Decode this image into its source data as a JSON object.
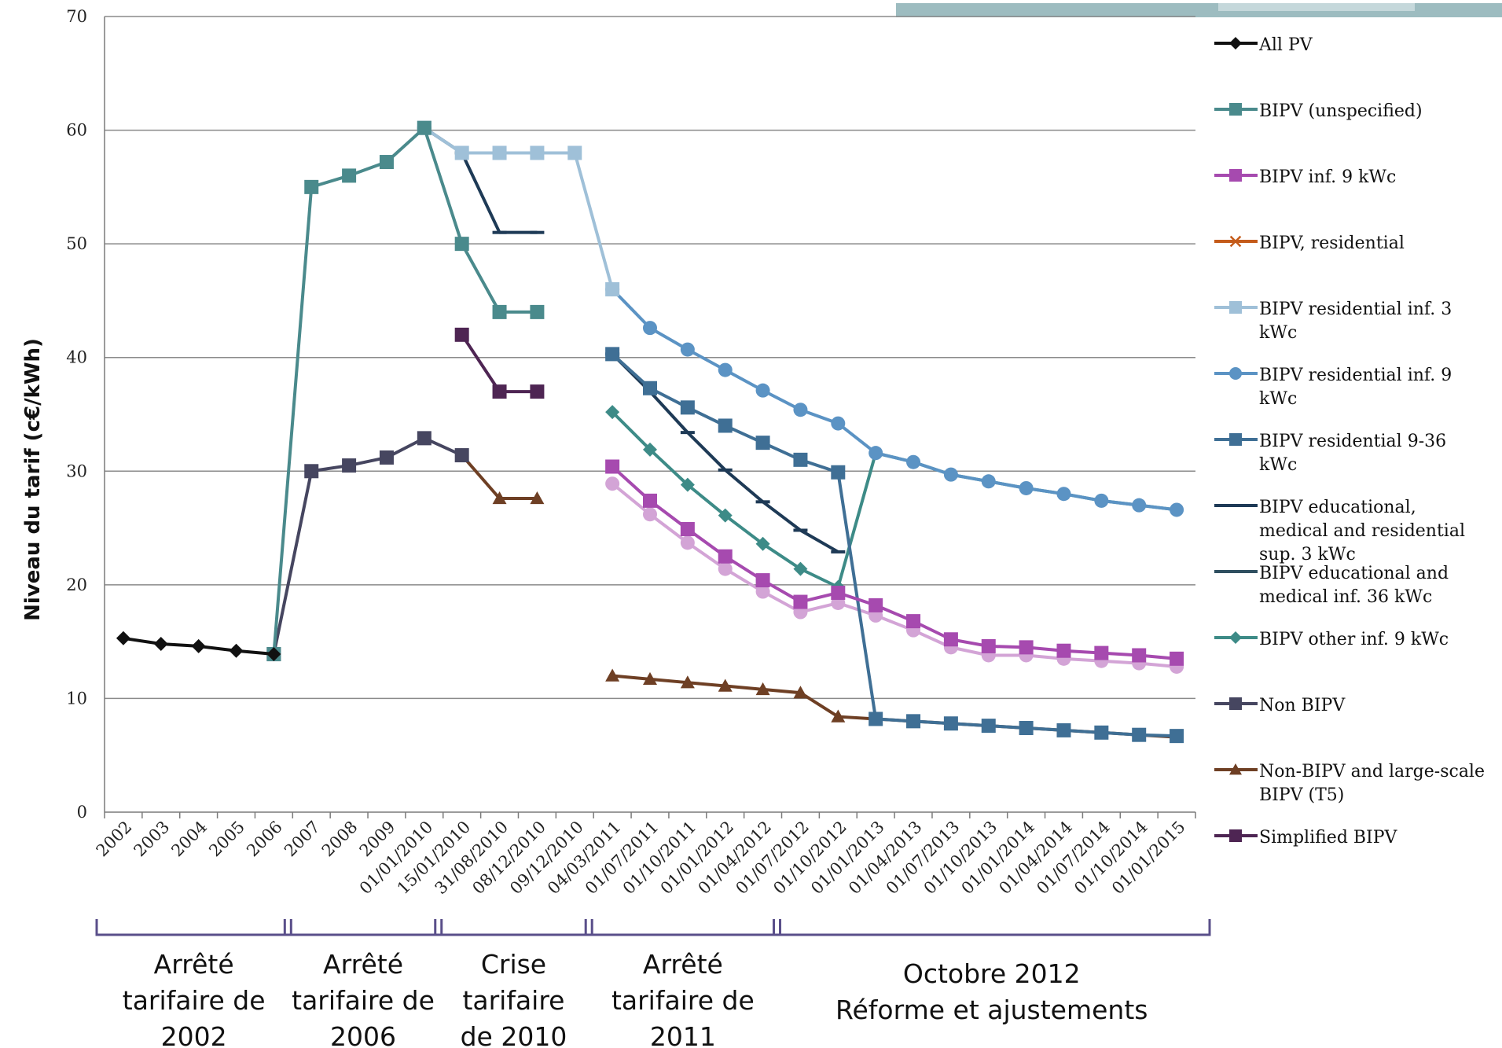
{
  "chart_data": {
    "type": "line",
    "ylabel": "Niveau du tarif (c€/kWh)",
    "xlabel": "",
    "ylim": [
      0,
      70
    ],
    "yticks": [
      0,
      10,
      20,
      30,
      40,
      50,
      60,
      70
    ],
    "grid": true,
    "legend_position": "right",
    "categories": [
      "2002",
      "2003",
      "2004",
      "2005",
      "2006",
      "2007",
      "2008",
      "2009",
      "01/01/2010",
      "15/01/2010",
      "31/08/2010",
      "08/12/2010",
      "09/12/2010",
      "04/03/2011",
      "01/07/2011",
      "01/10/2011",
      "01/01/2012",
      "01/04/2012",
      "01/07/2012",
      "01/10/2012",
      "01/01/2013",
      "01/04/2013",
      "01/07/2013",
      "01/10/2013",
      "01/01/2014",
      "01/04/2014",
      "01/07/2014",
      "01/10/2014",
      "01/01/2015"
    ],
    "series": [
      {
        "name": "All PV",
        "color": "#111111",
        "marker": "diamond",
        "values": [
          15.3,
          14.8,
          14.6,
          14.2,
          13.9,
          null,
          null,
          null,
          null,
          null,
          null,
          null,
          null,
          null,
          null,
          null,
          null,
          null,
          null,
          null,
          null,
          null,
          null,
          null,
          null,
          null,
          null,
          null,
          null
        ]
      },
      {
        "name": "BIPV (unspecified)",
        "color": "#4a8a8c",
        "marker": "square",
        "values": [
          null,
          null,
          null,
          null,
          13.9,
          55,
          56,
          57.2,
          60.2,
          50,
          44,
          44,
          null,
          null,
          null,
          null,
          null,
          null,
          null,
          null,
          null,
          null,
          null,
          null,
          null,
          null,
          null,
          null,
          null
        ]
      },
      {
        "name": "BIPV inf. 9 kWc",
        "color": "#a64aaf",
        "marker": "square",
        "values": [
          null,
          null,
          null,
          null,
          null,
          null,
          null,
          null,
          null,
          null,
          null,
          null,
          null,
          30.4,
          27.4,
          24.9,
          22.5,
          20.4,
          18.5,
          19.3,
          18.2,
          16.8,
          15.2,
          14.6,
          14.5,
          14.2,
          14.0,
          13.8,
          13.5
        ]
      },
      {
        "name": "BIPV, residential",
        "color": "#c45b1a",
        "marker": "x",
        "values": [
          null,
          null,
          null,
          null,
          null,
          null,
          null,
          null,
          null,
          null,
          null,
          null,
          null,
          null,
          null,
          null,
          null,
          null,
          null,
          null,
          null,
          null,
          null,
          null,
          null,
          null,
          null,
          null,
          null
        ]
      },
      {
        "name": "BIPV residential inf. 3 kWc",
        "color": "#9fc0d8",
        "marker": "square",
        "values": [
          null,
          null,
          null,
          null,
          null,
          null,
          null,
          null,
          60.2,
          58,
          58,
          58,
          58,
          46,
          null,
          null,
          null,
          null,
          null,
          null,
          null,
          null,
          null,
          null,
          null,
          null,
          null,
          null,
          null
        ]
      },
      {
        "name": "BIPV residential inf. 9 kWc",
        "color": "#5b93c4",
        "marker": "circle",
        "values": [
          null,
          null,
          null,
          null,
          null,
          null,
          null,
          null,
          null,
          null,
          null,
          null,
          null,
          46,
          42.6,
          40.7,
          38.9,
          37.1,
          35.4,
          34.2,
          31.6,
          30.8,
          29.7,
          29.1,
          28.5,
          28.0,
          27.4,
          27.0,
          26.6
        ]
      },
      {
        "name": "BIPV residential 9-36 kWc",
        "color": "#3f6f95",
        "marker": "square",
        "values": [
          null,
          null,
          null,
          null,
          null,
          null,
          null,
          null,
          null,
          null,
          null,
          null,
          null,
          40.3,
          37.3,
          35.6,
          34.0,
          32.5,
          31.0,
          29.9,
          8.2,
          8.0,
          7.8,
          7.6,
          7.4,
          7.2,
          7.0,
          6.8,
          6.7
        ]
      },
      {
        "name": "BIPV educational, medical and residential sup. 3 kWc",
        "color": "#1e3a56",
        "marker": "dash",
        "values": [
          null,
          null,
          null,
          null,
          null,
          null,
          null,
          null,
          60.2,
          58,
          51,
          51,
          null,
          40.3,
          37.0,
          33.4,
          30.1,
          27.3,
          24.8,
          22.9,
          null,
          null,
          null,
          null,
          null,
          null,
          null,
          null,
          null
        ]
      },
      {
        "name": "BIPV educational and medical inf. 36 kWc",
        "color": "#2f4f60",
        "marker": "none",
        "values": [
          null,
          null,
          null,
          null,
          null,
          null,
          null,
          null,
          null,
          null,
          null,
          null,
          null,
          null,
          null,
          null,
          null,
          null,
          null,
          null,
          null,
          null,
          null,
          null,
          null,
          null,
          null,
          null,
          null
        ]
      },
      {
        "name": "BIPV other inf. 9 kWc",
        "color": "#3d8b87",
        "marker": "diamond",
        "values": [
          null,
          null,
          null,
          null,
          null,
          null,
          null,
          null,
          null,
          null,
          null,
          null,
          null,
          35.2,
          31.9,
          28.8,
          26.1,
          23.6,
          21.4,
          19.8,
          31.6,
          30.8,
          29.7,
          29.1,
          28.5,
          28.0,
          27.4,
          27.0,
          26.6
        ]
      },
      {
        "name": "Non BIPV",
        "color": "#464660",
        "marker": "square",
        "values": [
          null,
          null,
          null,
          null,
          13.9,
          30,
          30.5,
          31.2,
          32.9,
          31.4,
          null,
          null,
          null,
          null,
          null,
          null,
          null,
          null,
          null,
          null,
          null,
          null,
          null,
          null,
          null,
          null,
          null,
          null,
          null
        ]
      },
      {
        "name": "Non-BIPV and large-scale BIPV (T5)",
        "color": "#6e3f24",
        "marker": "triangle",
        "values": [
          null,
          null,
          null,
          null,
          null,
          null,
          null,
          null,
          null,
          31.4,
          27.6,
          27.6,
          null,
          12.0,
          11.7,
          11.4,
          11.1,
          10.8,
          10.5,
          8.4,
          8.2,
          8.0,
          7.8,
          7.6,
          7.4,
          7.2,
          7.0,
          6.8,
          6.6
        ]
      },
      {
        "name": "Simplified BIPV",
        "color": "#4e2553",
        "marker": "square",
        "values": [
          null,
          null,
          null,
          null,
          null,
          null,
          null,
          null,
          null,
          42,
          37,
          37,
          null,
          null,
          null,
          null,
          null,
          null,
          null,
          null,
          null,
          null,
          null,
          null,
          null,
          null,
          null,
          null,
          null
        ]
      },
      {
        "name": "",
        "color": "#d3a4d6",
        "marker": "circle",
        "values": [
          null,
          null,
          null,
          null,
          null,
          null,
          null,
          null,
          null,
          null,
          null,
          null,
          null,
          28.9,
          26.2,
          23.7,
          21.4,
          19.4,
          17.6,
          18.4,
          17.3,
          16.0,
          14.5,
          13.8,
          13.8,
          13.5,
          13.3,
          13.1,
          12.8
        ]
      }
    ],
    "legend": [
      {
        "lines": [
          "All PV"
        ],
        "series": 0
      },
      {
        "lines": [
          "BIPV (unspecified)"
        ],
        "series": 1
      },
      {
        "lines": [
          "BIPV inf. 9 kWc"
        ],
        "series": 2
      },
      {
        "lines": [
          "BIPV, residential"
        ],
        "series": 3
      },
      {
        "lines": [
          "BIPV residential inf. 3",
          "kWc"
        ],
        "series": 4
      },
      {
        "lines": [
          "BIPV residential inf. 9",
          "kWc"
        ],
        "series": 5
      },
      {
        "lines": [
          "BIPV residential 9-36",
          "kWc"
        ],
        "series": 6
      },
      {
        "lines": [
          "BIPV educational,",
          "medical and residential",
          "sup. 3 kWc"
        ],
        "series": 7
      },
      {
        "lines": [
          "BIPV educational and",
          "medical inf. 36 kWc"
        ],
        "series": 8
      },
      {
        "lines": [
          "BIPV other inf. 9 kWc"
        ],
        "series": 9
      },
      {
        "lines": [
          "Non BIPV"
        ],
        "series": 10
      },
      {
        "lines": [
          "Non-BIPV and large-scale",
          "BIPV (T5)"
        ],
        "series": 11
      },
      {
        "lines": [
          "Simplified BIPV"
        ],
        "series": 12
      }
    ],
    "periods": [
      {
        "lines": [
          "Arrêté",
          "tarifaire de",
          "2002"
        ],
        "from": 0,
        "to": 4
      },
      {
        "lines": [
          "Arrêté",
          "tarifaire de",
          "2006"
        ],
        "from": 5,
        "to": 8
      },
      {
        "lines": [
          "Crise",
          "tarifaire",
          "de 2010"
        ],
        "from": 9,
        "to": 12
      },
      {
        "lines": [
          "Arrêté",
          "tarifaire de",
          "2011"
        ],
        "from": 13,
        "to": 17
      },
      {
        "lines": [
          "Octobre 2012",
          "Réforme et ajustements"
        ],
        "from": 18,
        "to": 28
      }
    ]
  },
  "decoration": {
    "bar_colors": [
      "#9dbcc0",
      "#c5d8db",
      "#e0eaec"
    ]
  }
}
